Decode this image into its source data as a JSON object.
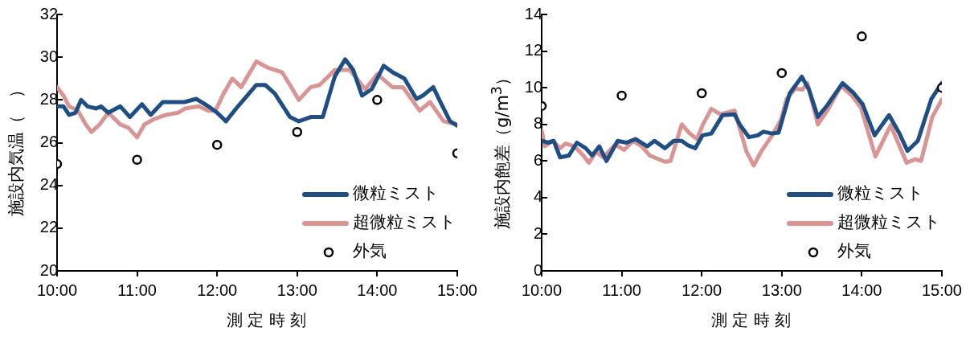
{
  "chart_data": [
    {
      "type": "line",
      "xlabel": "測 定 時 刻",
      "ylabel": "施設内気温（　）",
      "xlim": [
        10,
        15
      ],
      "xticks": [
        {
          "value": 10,
          "label": "10:00"
        },
        {
          "value": 11,
          "label": "11:00"
        },
        {
          "value": 12,
          "label": "12:00"
        },
        {
          "value": 13,
          "label": "13:00"
        },
        {
          "value": 14,
          "label": "14:00"
        },
        {
          "value": 15,
          "label": "15:00"
        }
      ],
      "ylim": [
        20,
        32
      ],
      "yticks": [
        20,
        22,
        24,
        26,
        28,
        30,
        32
      ],
      "grid": false,
      "legend": "bottom right",
      "series": [
        {
          "name": "微粒ミスト",
          "type": "line",
          "marker": "none",
          "color": "#1f4e84",
          "x": [
            10,
            10.08,
            10.15,
            10.23,
            10.3,
            10.38,
            10.49,
            10.55,
            10.64,
            10.79,
            10.91,
            11.06,
            11.17,
            11.32,
            11.59,
            11.74,
            11.89,
            12,
            12.11,
            12.26,
            12.49,
            12.6,
            12.72,
            12.91,
            13.02,
            13.17,
            13.32,
            13.47,
            13.6,
            13.7,
            13.81,
            13.93,
            14.08,
            14.19,
            14.34,
            14.49,
            14.57,
            14.7,
            14.79,
            14.91,
            15
          ],
          "values": [
            27.7,
            27.7,
            27.3,
            27.4,
            28.0,
            27.7,
            27.6,
            27.7,
            27.4,
            27.7,
            27.2,
            27.8,
            27.3,
            27.9,
            27.9,
            28.05,
            27.7,
            27.4,
            27.0,
            27.7,
            28.7,
            28.7,
            28.3,
            27.2,
            27.0,
            27.2,
            27.2,
            29.1,
            29.9,
            29.4,
            28.2,
            28.5,
            29.6,
            29.3,
            29.0,
            28.05,
            28.2,
            28.6,
            27.9,
            27.0,
            26.8
          ]
        },
        {
          "name": "超微粒ミスト",
          "type": "line",
          "marker": "none",
          "color": "#d99594",
          "x": [
            10,
            10.08,
            10.15,
            10.26,
            10.36,
            10.43,
            10.53,
            10.64,
            10.79,
            10.89,
            11,
            11.09,
            11.21,
            11.36,
            11.51,
            11.6,
            11.77,
            11.89,
            11.98,
            12.08,
            12.19,
            12.3,
            12.49,
            12.64,
            12.81,
            12.91,
            13.02,
            13.17,
            13.28,
            13.47,
            13.66,
            13.85,
            14,
            14.19,
            14.32,
            14.53,
            14.66,
            14.83,
            15
          ],
          "values": [
            28.6,
            28.2,
            27.7,
            27.5,
            26.85,
            26.5,
            26.85,
            27.4,
            26.85,
            26.7,
            26.25,
            26.85,
            27.1,
            27.3,
            27.4,
            27.6,
            27.7,
            27.5,
            27.5,
            28.3,
            29.0,
            28.6,
            29.8,
            29.5,
            29.3,
            28.7,
            28.0,
            28.6,
            28.7,
            29.4,
            29.4,
            28.5,
            29.2,
            28.6,
            28.6,
            27.5,
            27.9,
            27.0,
            26.85
          ]
        },
        {
          "name": "外気",
          "type": "scatter",
          "marker": "circle",
          "color": "#000000",
          "x": [
            10,
            11,
            12,
            13,
            14,
            15
          ],
          "values": [
            25.0,
            25.2,
            25.9,
            26.5,
            28.0,
            25.5
          ]
        }
      ]
    },
    {
      "type": "line",
      "xlabel": "測 定 時 刻",
      "ylabel": "施設内飽差（g/m$^{3}$）",
      "xlim": [
        10,
        15
      ],
      "xticks": [
        {
          "value": 10,
          "label": "10:00"
        },
        {
          "value": 11,
          "label": "11:00"
        },
        {
          "value": 12,
          "label": "12:00"
        },
        {
          "value": 13,
          "label": "13:00"
        },
        {
          "value": 14,
          "label": "14:00"
        },
        {
          "value": 15,
          "label": "15:00"
        }
      ],
      "ylim": [
        0,
        14
      ],
      "yticks": [
        0,
        2,
        4,
        6,
        8,
        10,
        12,
        14
      ],
      "grid": false,
      "legend": "bottom right",
      "series": [
        {
          "name": "微粒ミスト",
          "type": "line",
          "marker": "none",
          "color": "#1f4e84",
          "x": [
            10,
            10.08,
            10.15,
            10.23,
            10.34,
            10.44,
            10.55,
            10.63,
            10.72,
            10.81,
            10.95,
            11.06,
            11.17,
            11.32,
            11.41,
            11.54,
            11.65,
            11.75,
            11.83,
            11.92,
            12.01,
            12.12,
            12.26,
            12.41,
            12.48,
            12.59,
            12.7,
            12.77,
            12.88,
            12.96,
            13.1,
            13.25,
            13.34,
            13.45,
            13.57,
            13.76,
            13.9,
            14.01,
            14.16,
            14.34,
            14.47,
            14.57,
            14.7,
            14.87,
            15
          ],
          "values": [
            7.1,
            7.0,
            7.1,
            6.2,
            6.3,
            7.0,
            6.7,
            6.3,
            6.8,
            6.0,
            7.1,
            7.0,
            7.2,
            6.8,
            7.1,
            6.7,
            7.1,
            7.1,
            6.85,
            6.7,
            7.4,
            7.5,
            8.5,
            8.55,
            7.95,
            7.3,
            7.4,
            7.6,
            7.5,
            7.55,
            9.7,
            10.6,
            9.9,
            8.4,
            9.05,
            10.25,
            9.7,
            9.1,
            7.4,
            8.5,
            7.5,
            6.55,
            7.1,
            9.4,
            10.25
          ]
        },
        {
          "name": "超微粒ミスト",
          "type": "line",
          "marker": "none",
          "color": "#d99594",
          "x": [
            10,
            10.04,
            10.14,
            10.23,
            10.3,
            10.41,
            10.52,
            10.59,
            10.68,
            10.77,
            10.92,
            11.03,
            11.14,
            11.25,
            11.35,
            11.54,
            11.61,
            11.75,
            11.85,
            11.94,
            12.01,
            12.12,
            12.23,
            12.41,
            12.56,
            12.65,
            12.74,
            12.88,
            12.99,
            13.06,
            13.17,
            13.26,
            13.32,
            13.45,
            13.57,
            13.74,
            13.87,
            13.99,
            14.17,
            14.36,
            14.56,
            14.67,
            14.74,
            14.88,
            15
          ],
          "values": [
            7.65,
            6.8,
            7.1,
            6.7,
            6.95,
            6.8,
            6.3,
            5.9,
            6.5,
            6.2,
            6.9,
            6.6,
            7.1,
            6.8,
            6.3,
            5.96,
            6.0,
            8.0,
            7.5,
            7.2,
            7.95,
            8.85,
            8.55,
            8.75,
            6.5,
            5.75,
            6.5,
            7.4,
            8.25,
            9.4,
            9.95,
            9.9,
            10.25,
            8.0,
            8.75,
            10.1,
            9.6,
            8.9,
            6.25,
            7.95,
            5.9,
            6.1,
            6.0,
            8.4,
            9.35
          ]
        },
        {
          "name": "外気",
          "type": "scatter",
          "marker": "circle",
          "color": "#000000",
          "x": [
            10,
            11,
            12,
            13,
            14,
            15
          ],
          "values": [
            9.0,
            9.57,
            9.7,
            10.8,
            12.8,
            10.0
          ]
        }
      ]
    }
  ]
}
